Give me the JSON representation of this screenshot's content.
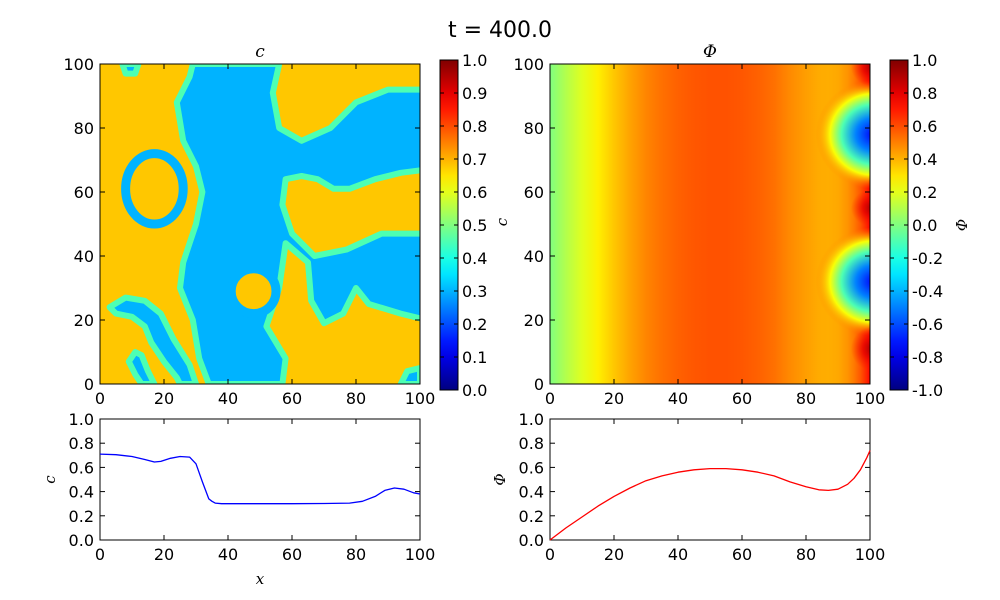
{
  "figure": {
    "title": "t = 400.0"
  },
  "chart_data": [
    {
      "id": "c-field",
      "type": "heatmap",
      "title": "c",
      "xlabel": "",
      "ylabel": "",
      "xlim": [
        0,
        100
      ],
      "ylim": [
        0,
        100
      ],
      "xticks": [
        0,
        20,
        40,
        60,
        80,
        100
      ],
      "yticks": [
        0,
        20,
        40,
        60,
        80,
        100
      ],
      "grid": false,
      "colormap": "jet",
      "phase_high": 0.68,
      "phase_low": 0.3,
      "colorbar": {
        "label": "",
        "min": 0.0,
        "max": 1.0,
        "ticks": [
          "0.0",
          "0.1",
          "0.2",
          "0.3",
          "0.4",
          "0.5",
          "0.6",
          "0.7",
          "0.8",
          "0.9",
          "1.0"
        ]
      }
    },
    {
      "id": "phi-field",
      "type": "heatmap",
      "title": "Φ",
      "xlabel": "",
      "ylabel": "c",
      "xlim": [
        0,
        100
      ],
      "ylim": [
        0,
        100
      ],
      "xticks": [
        0,
        20,
        40,
        60,
        80,
        100
      ],
      "yticks": [
        0,
        20,
        40,
        60,
        80,
        100
      ],
      "grid": false,
      "colormap": "jet",
      "colorbar": {
        "label": "Φ",
        "min": -1.0,
        "max": 1.0,
        "ticks": [
          "-1.0",
          "-0.8",
          "-0.6",
          "-0.4",
          "-0.2",
          "0.0",
          "0.2",
          "0.4",
          "0.6",
          "0.8",
          "1.0"
        ]
      }
    },
    {
      "id": "c-profile",
      "type": "line",
      "xlabel": "x",
      "ylabel": "c",
      "xlim": [
        0,
        100
      ],
      "ylim": [
        0,
        1.0
      ],
      "xticks": [
        0,
        20,
        40,
        60,
        80,
        100
      ],
      "yticks": [
        "0.0",
        "0.2",
        "0.4",
        "0.6",
        "0.8",
        "1.0"
      ],
      "grid": false,
      "series": [
        {
          "color": "#0000ff",
          "x": [
            0,
            5,
            10,
            14,
            17,
            19,
            22,
            25,
            28,
            30,
            32,
            34,
            35,
            36,
            38,
            40,
            50,
            60,
            70,
            78,
            82,
            86,
            89,
            92,
            95,
            98,
            100
          ],
          "y": [
            0.71,
            0.705,
            0.69,
            0.665,
            0.645,
            0.65,
            0.675,
            0.69,
            0.685,
            0.63,
            0.48,
            0.34,
            0.32,
            0.305,
            0.3,
            0.3,
            0.3,
            0.3,
            0.302,
            0.305,
            0.32,
            0.36,
            0.41,
            0.43,
            0.42,
            0.39,
            0.38
          ]
        }
      ]
    },
    {
      "id": "phi-profile",
      "type": "line",
      "xlabel": "",
      "ylabel": "Φ",
      "xlim": [
        0,
        100
      ],
      "ylim": [
        0,
        1.0
      ],
      "xticks": [
        0,
        20,
        40,
        60,
        80,
        100
      ],
      "yticks": [
        "0.0",
        "0.2",
        "0.4",
        "0.6",
        "0.8",
        "1.0"
      ],
      "grid": false,
      "series": [
        {
          "color": "#ff0000",
          "x": [
            0,
            5,
            10,
            15,
            20,
            25,
            30,
            35,
            40,
            45,
            50,
            55,
            60,
            65,
            70,
            75,
            80,
            84,
            87,
            90,
            93,
            95,
            97,
            99,
            100
          ],
          "y": [
            0.0,
            0.1,
            0.19,
            0.28,
            0.36,
            0.43,
            0.49,
            0.53,
            0.56,
            0.58,
            0.59,
            0.59,
            0.58,
            0.56,
            0.53,
            0.48,
            0.44,
            0.415,
            0.41,
            0.42,
            0.46,
            0.51,
            0.58,
            0.68,
            0.74
          ]
        }
      ]
    }
  ]
}
